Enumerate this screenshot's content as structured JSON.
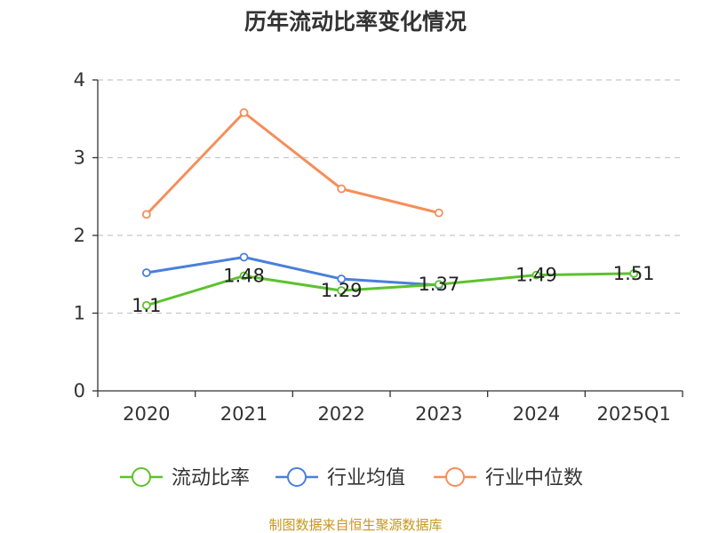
{
  "chart_data": {
    "type": "line",
    "title": "历年流动比率变化情况",
    "categories": [
      "2020",
      "2021",
      "2022",
      "2023",
      "2024",
      "2025Q1"
    ],
    "ylim": [
      0,
      4
    ],
    "yticks": [
      0,
      1,
      2,
      3,
      4
    ],
    "grid": true,
    "legend_position": "bottom",
    "series": [
      {
        "name": "流动比率",
        "color": "#5cc22e",
        "values": [
          1.1,
          1.48,
          1.29,
          1.37,
          1.49,
          1.51
        ],
        "labels": [
          "1.1",
          "1.48",
          "1.29",
          "1.37",
          "1.49",
          "1.51"
        ]
      },
      {
        "name": "行业均值",
        "color": "#4a7fdc",
        "values": [
          1.52,
          1.72,
          1.44,
          1.36,
          null,
          null
        ]
      },
      {
        "name": "行业中位数",
        "color": "#f68e5a",
        "values": [
          2.27,
          3.58,
          2.6,
          2.29,
          null,
          null
        ]
      }
    ]
  },
  "source": "制图数据来自恒生聚源数据库"
}
